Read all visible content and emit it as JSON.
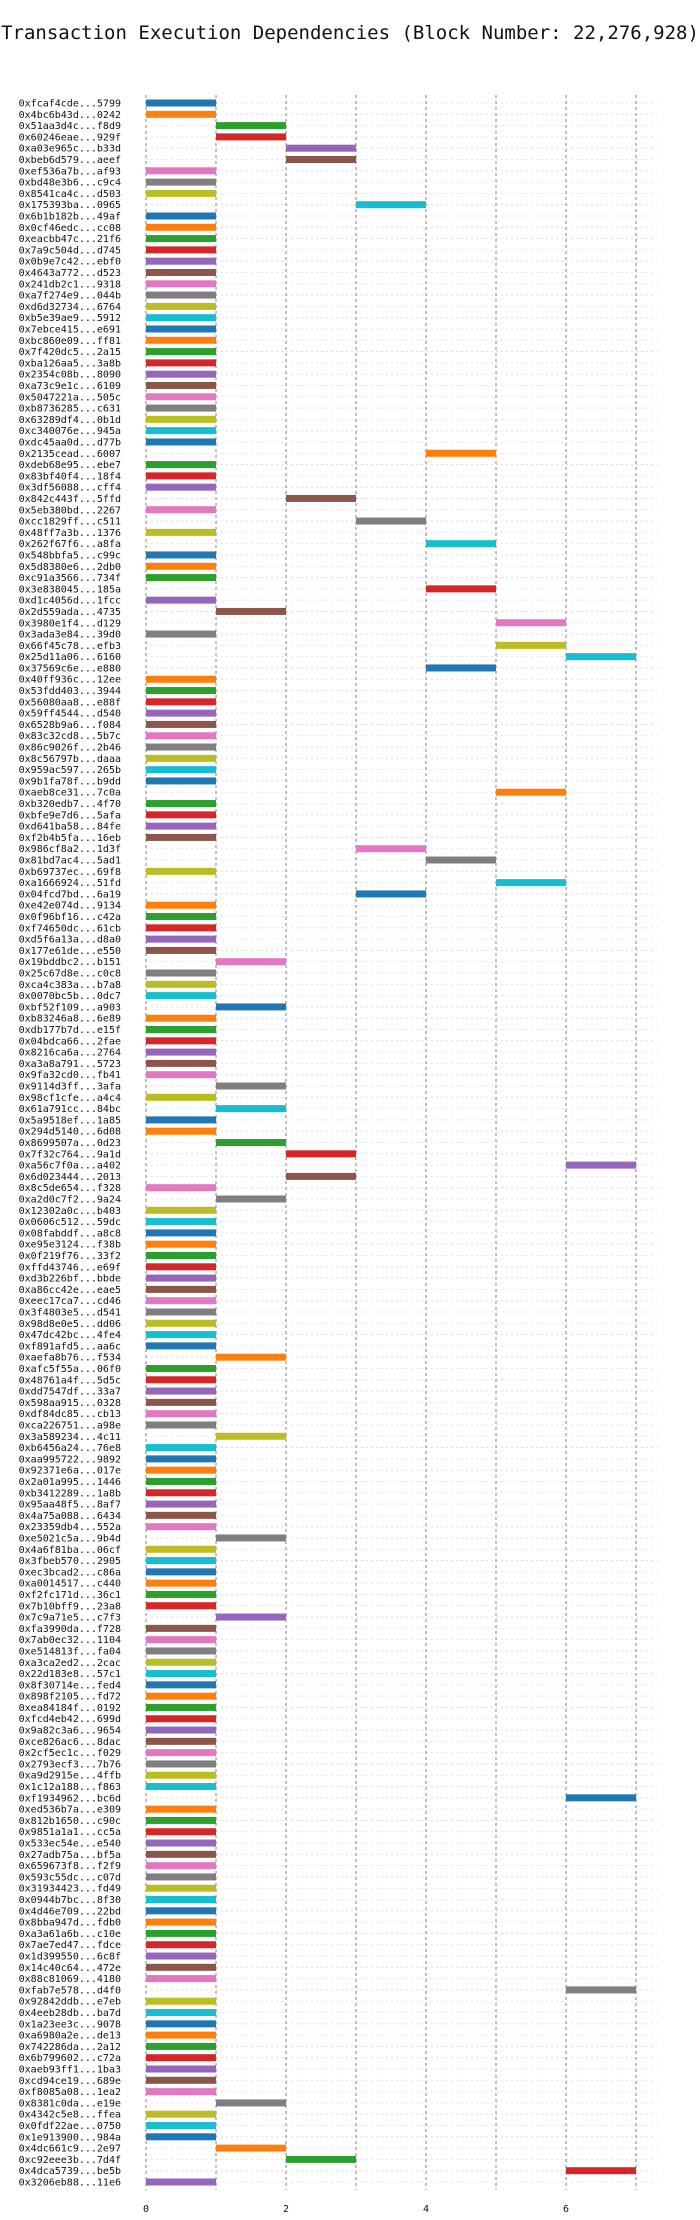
{
  "chart_data": {
    "type": "bar",
    "orientation": "horizontal",
    "title": "Transaction Execution Dependencies (Block Number: 22,276,928)",
    "xlabel": "",
    "ylabel": "",
    "x_ticks": [
      0,
      2,
      4,
      6
    ],
    "xlim": [
      0,
      7.3
    ],
    "grid": true,
    "palette": [
      "#1f77b4",
      "#ff7f0e",
      "#2ca02c",
      "#d62728",
      "#9467bd",
      "#8c564b",
      "#e377c2",
      "#7f7f7f",
      "#bcbd22",
      "#17becf"
    ],
    "bars": [
      {
        "label": "0xfcaf4cde...5799",
        "start": 0,
        "end": 1
      },
      {
        "label": "0x4bc6b43d...0242",
        "start": 0,
        "end": 1
      },
      {
        "label": "0x51aa3d4c...f8d9",
        "start": 1,
        "end": 2
      },
      {
        "label": "0x60246eae...929f",
        "start": 1,
        "end": 2
      },
      {
        "label": "0xa03e965c...b33d",
        "start": 2,
        "end": 3
      },
      {
        "label": "0xbeb6d579...aeef",
        "start": 2,
        "end": 3
      },
      {
        "label": "0xef536a7b...af93",
        "start": 0,
        "end": 1
      },
      {
        "label": "0xbd48e3b6...c9c4",
        "start": 0,
        "end": 1
      },
      {
        "label": "0x8541ca4c...d503",
        "start": 0,
        "end": 1
      },
      {
        "label": "0x175393ba...0965",
        "start": 3,
        "end": 4
      },
      {
        "label": "0x6b1b182b...49af",
        "start": 0,
        "end": 1
      },
      {
        "label": "0x0cf46edc...cc08",
        "start": 0,
        "end": 1
      },
      {
        "label": "0xeacbb47c...21f6",
        "start": 0,
        "end": 1
      },
      {
        "label": "0x7a9c504d...d745",
        "start": 0,
        "end": 1
      },
      {
        "label": "0x0b9e7c42...ebf0",
        "start": 0,
        "end": 1
      },
      {
        "label": "0x4643a772...d523",
        "start": 0,
        "end": 1
      },
      {
        "label": "0x241db2c1...9318",
        "start": 0,
        "end": 1
      },
      {
        "label": "0xa7f274e9...044b",
        "start": 0,
        "end": 1
      },
      {
        "label": "0xd6d32734...6764",
        "start": 0,
        "end": 1
      },
      {
        "label": "0xb5e39ae9...5912",
        "start": 0,
        "end": 1
      },
      {
        "label": "0x7ebce415...e691",
        "start": 0,
        "end": 1
      },
      {
        "label": "0xbc860e09...ff81",
        "start": 0,
        "end": 1
      },
      {
        "label": "0x7f420dc5...2a15",
        "start": 0,
        "end": 1
      },
      {
        "label": "0xba126aa5...3a8b",
        "start": 0,
        "end": 1
      },
      {
        "label": "0x2354c08b...8090",
        "start": 0,
        "end": 1
      },
      {
        "label": "0xa73c9e1c...6109",
        "start": 0,
        "end": 1
      },
      {
        "label": "0x5047221a...505c",
        "start": 0,
        "end": 1
      },
      {
        "label": "0xb8736285...c631",
        "start": 0,
        "end": 1
      },
      {
        "label": "0x63289df4...0b1d",
        "start": 0,
        "end": 1
      },
      {
        "label": "0xc340076e...945a",
        "start": 0,
        "end": 1
      },
      {
        "label": "0xdc45aa0d...d77b",
        "start": 0,
        "end": 1
      },
      {
        "label": "0x2135cead...6007",
        "start": 4,
        "end": 5
      },
      {
        "label": "0xdeb68e95...ebe7",
        "start": 0,
        "end": 1
      },
      {
        "label": "0x83bf40f4...18f4",
        "start": 0,
        "end": 1
      },
      {
        "label": "0x3df56088...cff4",
        "start": 0,
        "end": 1
      },
      {
        "label": "0x842c443f...5ffd",
        "start": 2,
        "end": 3
      },
      {
        "label": "0x5eb380bd...2267",
        "start": 0,
        "end": 1
      },
      {
        "label": "0xcc1829ff...c511",
        "start": 3,
        "end": 4
      },
      {
        "label": "0x48ff7a3b...1376",
        "start": 0,
        "end": 1
      },
      {
        "label": "0x262f67f6...a8fa",
        "start": 4,
        "end": 5
      },
      {
        "label": "0x548bbfa5...c99c",
        "start": 0,
        "end": 1
      },
      {
        "label": "0x5d8380e6...2db0",
        "start": 0,
        "end": 1
      },
      {
        "label": "0xc91a3566...734f",
        "start": 0,
        "end": 1
      },
      {
        "label": "0x3e838045...185a",
        "start": 4,
        "end": 5
      },
      {
        "label": "0xd1c4056d...1fcc",
        "start": 0,
        "end": 1
      },
      {
        "label": "0x2d559ada...4735",
        "start": 1,
        "end": 2
      },
      {
        "label": "0x3980e1f4...d129",
        "start": 5,
        "end": 6
      },
      {
        "label": "0x3ada3e84...39d0",
        "start": 0,
        "end": 1
      },
      {
        "label": "0x66f45c78...efb3",
        "start": 5,
        "end": 6
      },
      {
        "label": "0x25d11a06...6160",
        "start": 6,
        "end": 7
      },
      {
        "label": "0x37569c6e...e880",
        "start": 4,
        "end": 5
      },
      {
        "label": "0x40ff936c...12ee",
        "start": 0,
        "end": 1
      },
      {
        "label": "0x53fdd403...3944",
        "start": 0,
        "end": 1
      },
      {
        "label": "0x56080aa8...e88f",
        "start": 0,
        "end": 1
      },
      {
        "label": "0x59ff4544...d540",
        "start": 0,
        "end": 1
      },
      {
        "label": "0x6528b9a6...f084",
        "start": 0,
        "end": 1
      },
      {
        "label": "0x83c32cd8...5b7c",
        "start": 0,
        "end": 1
      },
      {
        "label": "0x86c9026f...2b46",
        "start": 0,
        "end": 1
      },
      {
        "label": "0x8c56797b...daaa",
        "start": 0,
        "end": 1
      },
      {
        "label": "0x959ac597...265b",
        "start": 0,
        "end": 1
      },
      {
        "label": "0x9b1fa78f...b9dd",
        "start": 0,
        "end": 1
      },
      {
        "label": "0xaeb8ce31...7c0a",
        "start": 5,
        "end": 6
      },
      {
        "label": "0xb320edb7...4f70",
        "start": 0,
        "end": 1
      },
      {
        "label": "0xbfe9e7d6...5afa",
        "start": 0,
        "end": 1
      },
      {
        "label": "0xd641ba58...84fe",
        "start": 0,
        "end": 1
      },
      {
        "label": "0xf2b4b5fa...16eb",
        "start": 0,
        "end": 1
      },
      {
        "label": "0x986cf8a2...1d3f",
        "start": 3,
        "end": 4
      },
      {
        "label": "0x81bd7ac4...5ad1",
        "start": 4,
        "end": 5
      },
      {
        "label": "0xb69737ec...69f8",
        "start": 0,
        "end": 1
      },
      {
        "label": "0xa1666924...51fd",
        "start": 5,
        "end": 6
      },
      {
        "label": "0x04fcd7bd...6a19",
        "start": 3,
        "end": 4
      },
      {
        "label": "0xe42e074d...9134",
        "start": 0,
        "end": 1
      },
      {
        "label": "0x0f96bf16...c42a",
        "start": 0,
        "end": 1
      },
      {
        "label": "0xf74650dc...61cb",
        "start": 0,
        "end": 1
      },
      {
        "label": "0xd5f6a13a...d8a0",
        "start": 0,
        "end": 1
      },
      {
        "label": "0x177e61de...e550",
        "start": 0,
        "end": 1
      },
      {
        "label": "0x19bddbc2...b151",
        "start": 1,
        "end": 2
      },
      {
        "label": "0x25c67d8e...c0c8",
        "start": 0,
        "end": 1
      },
      {
        "label": "0xca4c383a...b7a8",
        "start": 0,
        "end": 1
      },
      {
        "label": "0x0070bc5b...0dc7",
        "start": 0,
        "end": 1
      },
      {
        "label": "0xbf52f109...a903",
        "start": 1,
        "end": 2
      },
      {
        "label": "0xb83246a8...6e89",
        "start": 0,
        "end": 1
      },
      {
        "label": "0xdb177b7d...e15f",
        "start": 0,
        "end": 1
      },
      {
        "label": "0x04bdca66...2fae",
        "start": 0,
        "end": 1
      },
      {
        "label": "0x8216ca6a...2764",
        "start": 0,
        "end": 1
      },
      {
        "label": "0xa3a8a791...5723",
        "start": 0,
        "end": 1
      },
      {
        "label": "0x9fa32cd0...fb41",
        "start": 0,
        "end": 1
      },
      {
        "label": "0x9114d3ff...3afa",
        "start": 1,
        "end": 2
      },
      {
        "label": "0x98cf1cfe...a4c4",
        "start": 0,
        "end": 1
      },
      {
        "label": "0x61a791cc...84bc",
        "start": 1,
        "end": 2
      },
      {
        "label": "0x5a9518ef...1a85",
        "start": 0,
        "end": 1
      },
      {
        "label": "0x294d5140...6d08",
        "start": 0,
        "end": 1
      },
      {
        "label": "0x8699507a...0d23",
        "start": 1,
        "end": 2
      },
      {
        "label": "0x7f32c764...9a1d",
        "start": 2,
        "end": 3
      },
      {
        "label": "0xa56c7f0a...a402",
        "start": 6,
        "end": 7
      },
      {
        "label": "0x6d023444...2013",
        "start": 2,
        "end": 3
      },
      {
        "label": "0x8c5de654...f328",
        "start": 0,
        "end": 1
      },
      {
        "label": "0xa2d0c7f2...9a24",
        "start": 1,
        "end": 2
      },
      {
        "label": "0x12302a0c...b403",
        "start": 0,
        "end": 1
      },
      {
        "label": "0x0606c512...59dc",
        "start": 0,
        "end": 1
      },
      {
        "label": "0x08fabddf...a8c8",
        "start": 0,
        "end": 1
      },
      {
        "label": "0xe95e3124...f38b",
        "start": 0,
        "end": 1
      },
      {
        "label": "0x0f219f76...33f2",
        "start": 0,
        "end": 1
      },
      {
        "label": "0xffd43746...e69f",
        "start": 0,
        "end": 1
      },
      {
        "label": "0xd3b226bf...bbde",
        "start": 0,
        "end": 1
      },
      {
        "label": "0xa86cc42e...eae5",
        "start": 0,
        "end": 1
      },
      {
        "label": "0xeec17ca7...cd46",
        "start": 0,
        "end": 1
      },
      {
        "label": "0x3f4803e5...d541",
        "start": 0,
        "end": 1
      },
      {
        "label": "0x98d8e0e5...dd06",
        "start": 0,
        "end": 1
      },
      {
        "label": "0x47dc42bc...4fe4",
        "start": 0,
        "end": 1
      },
      {
        "label": "0xf891afd5...aa6c",
        "start": 0,
        "end": 1
      },
      {
        "label": "0xaefa8b76...f534",
        "start": 1,
        "end": 2
      },
      {
        "label": "0xafc5f55a...06f0",
        "start": 0,
        "end": 1
      },
      {
        "label": "0x48761a4f...5d5c",
        "start": 0,
        "end": 1
      },
      {
        "label": "0xdd7547df...33a7",
        "start": 0,
        "end": 1
      },
      {
        "label": "0x598aa915...0328",
        "start": 0,
        "end": 1
      },
      {
        "label": "0xdf84dc85...cb13",
        "start": 0,
        "end": 1
      },
      {
        "label": "0xca226751...a98e",
        "start": 0,
        "end": 1
      },
      {
        "label": "0x3a589234...4c11",
        "start": 1,
        "end": 2
      },
      {
        "label": "0xb6456a24...76e8",
        "start": 0,
        "end": 1
      },
      {
        "label": "0xaa995722...9892",
        "start": 0,
        "end": 1
      },
      {
        "label": "0x92371e6a...017e",
        "start": 0,
        "end": 1
      },
      {
        "label": "0x2a01a995...1446",
        "start": 0,
        "end": 1
      },
      {
        "label": "0xb3412289...1a8b",
        "start": 0,
        "end": 1
      },
      {
        "label": "0x95aa48f5...8af7",
        "start": 0,
        "end": 1
      },
      {
        "label": "0x4a75a088...6434",
        "start": 0,
        "end": 1
      },
      {
        "label": "0x23359db4...552a",
        "start": 0,
        "end": 1
      },
      {
        "label": "0xe5021c5a...9b4d",
        "start": 1,
        "end": 2
      },
      {
        "label": "0x4a6f81ba...06cf",
        "start": 0,
        "end": 1
      },
      {
        "label": "0x3fbeb570...2905",
        "start": 0,
        "end": 1
      },
      {
        "label": "0xec3bcad2...c86a",
        "start": 0,
        "end": 1
      },
      {
        "label": "0xa0014517...c440",
        "start": 0,
        "end": 1
      },
      {
        "label": "0xf2fc171d...36c1",
        "start": 0,
        "end": 1
      },
      {
        "label": "0x7b10bff9...23a8",
        "start": 0,
        "end": 1
      },
      {
        "label": "0x7c9a71e5...c7f3",
        "start": 1,
        "end": 2
      },
      {
        "label": "0xfa3990da...f728",
        "start": 0,
        "end": 1
      },
      {
        "label": "0x7ab0ec32...1104",
        "start": 0,
        "end": 1
      },
      {
        "label": "0xe514813f...fa04",
        "start": 0,
        "end": 1
      },
      {
        "label": "0xa3ca2ed2...2cac",
        "start": 0,
        "end": 1
      },
      {
        "label": "0x22d183e8...57c1",
        "start": 0,
        "end": 1
      },
      {
        "label": "0x8f30714e...fed4",
        "start": 0,
        "end": 1
      },
      {
        "label": "0x898f2105...fd72",
        "start": 0,
        "end": 1
      },
      {
        "label": "0xea84184f...0192",
        "start": 0,
        "end": 1
      },
      {
        "label": "0xfcd4eb42...699d",
        "start": 0,
        "end": 1
      },
      {
        "label": "0x9a82c3a6...9654",
        "start": 0,
        "end": 1
      },
      {
        "label": "0xce826ac6...8dac",
        "start": 0,
        "end": 1
      },
      {
        "label": "0x2cf5ec1c...f029",
        "start": 0,
        "end": 1
      },
      {
        "label": "0x2793ecf3...7b76",
        "start": 0,
        "end": 1
      },
      {
        "label": "0xa9d2915e...4ffb",
        "start": 0,
        "end": 1
      },
      {
        "label": "0x1c12a188...f863",
        "start": 0,
        "end": 1
      },
      {
        "label": "0xf1934962...bc6d",
        "start": 6,
        "end": 7
      },
      {
        "label": "0xed536b7a...e309",
        "start": 0,
        "end": 1
      },
      {
        "label": "0x812b1650...c90c",
        "start": 0,
        "end": 1
      },
      {
        "label": "0x9851a1a1...cc5a",
        "start": 0,
        "end": 1
      },
      {
        "label": "0x533ec54e...e540",
        "start": 0,
        "end": 1
      },
      {
        "label": "0x27adb75a...bf5a",
        "start": 0,
        "end": 1
      },
      {
        "label": "0x659673f8...f2f9",
        "start": 0,
        "end": 1
      },
      {
        "label": "0x593c55dc...c07d",
        "start": 0,
        "end": 1
      },
      {
        "label": "0x31934423...fd49",
        "start": 0,
        "end": 1
      },
      {
        "label": "0x0944b7bc...8f30",
        "start": 0,
        "end": 1
      },
      {
        "label": "0x4d46e709...22bd",
        "start": 0,
        "end": 1
      },
      {
        "label": "0x8bba947d...fdb0",
        "start": 0,
        "end": 1
      },
      {
        "label": "0xa3a61a6b...c10e",
        "start": 0,
        "end": 1
      },
      {
        "label": "0x7ae7ed47...fdce",
        "start": 0,
        "end": 1
      },
      {
        "label": "0x1d399550...6c8f",
        "start": 0,
        "end": 1
      },
      {
        "label": "0x14c40c64...472e",
        "start": 0,
        "end": 1
      },
      {
        "label": "0x88c81069...4180",
        "start": 0,
        "end": 1
      },
      {
        "label": "0xfab7e578...d4f0",
        "start": 6,
        "end": 7
      },
      {
        "label": "0x92842ddb...e7eb",
        "start": 0,
        "end": 1
      },
      {
        "label": "0x4eeb28db...ba7d",
        "start": 0,
        "end": 1
      },
      {
        "label": "0x1a23ee3c...9078",
        "start": 0,
        "end": 1
      },
      {
        "label": "0xa6980a2e...de13",
        "start": 0,
        "end": 1
      },
      {
        "label": "0x742286da...2a12",
        "start": 0,
        "end": 1
      },
      {
        "label": "0x6b799602...c72a",
        "start": 0,
        "end": 1
      },
      {
        "label": "0xaeb93ff1...1ba3",
        "start": 0,
        "end": 1
      },
      {
        "label": "0xcd94ce19...689e",
        "start": 0,
        "end": 1
      },
      {
        "label": "0xf8085a08...1ea2",
        "start": 0,
        "end": 1
      },
      {
        "label": "0x8381c0da...e19e",
        "start": 1,
        "end": 2
      },
      {
        "label": "0x4342c5e8...ffea",
        "start": 0,
        "end": 1
      },
      {
        "label": "0x0fdf22ae...0750",
        "start": 0,
        "end": 1
      },
      {
        "label": "0x1e913900...984a",
        "start": 0,
        "end": 1
      },
      {
        "label": "0x4dc661c9...2e97",
        "start": 1,
        "end": 2
      },
      {
        "label": "0xc92eee3b...7d4f",
        "start": 2,
        "end": 3
      },
      {
        "label": "0x4dca5739...be5b",
        "start": 6,
        "end": 7
      },
      {
        "label": "0x3206eb88...11e6",
        "start": 0,
        "end": 1
      }
    ]
  }
}
